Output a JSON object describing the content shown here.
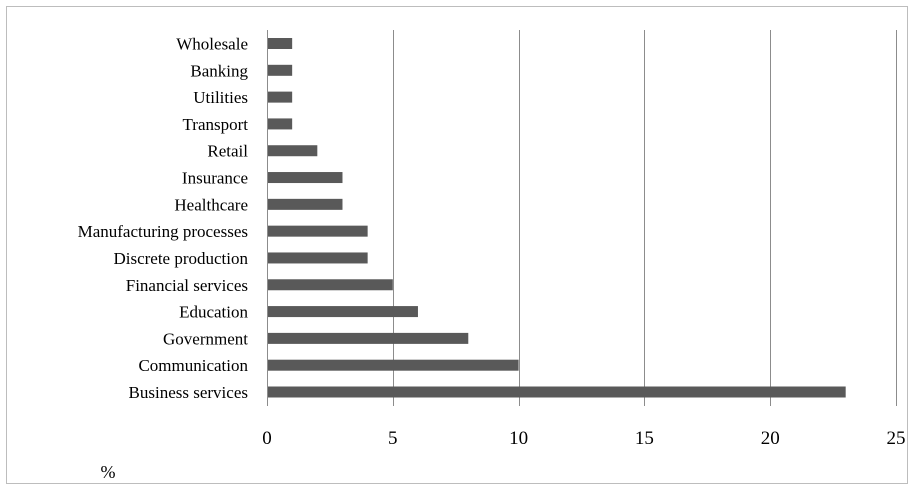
{
  "chart_data": {
    "type": "bar",
    "orientation": "horizontal",
    "categories": [
      "Wholesale",
      "Banking",
      "Utilities",
      "Transport",
      "Retail",
      "Insurance",
      "Healthcare",
      "Manufacturing processes",
      "Discrete production",
      "Financial services",
      "Education",
      "Government",
      "Communication",
      "Business services"
    ],
    "values": [
      1,
      1,
      1,
      1,
      2,
      3,
      3,
      4,
      4,
      5,
      6,
      8,
      10,
      23
    ],
    "xlim": [
      0,
      25
    ],
    "xticks": [
      "0",
      "5",
      "10",
      "15",
      "20",
      "25"
    ],
    "unit_label": "%",
    "grid": "vertical",
    "bar_color": "#595959",
    "grid_color": "#8c8c8c"
  }
}
